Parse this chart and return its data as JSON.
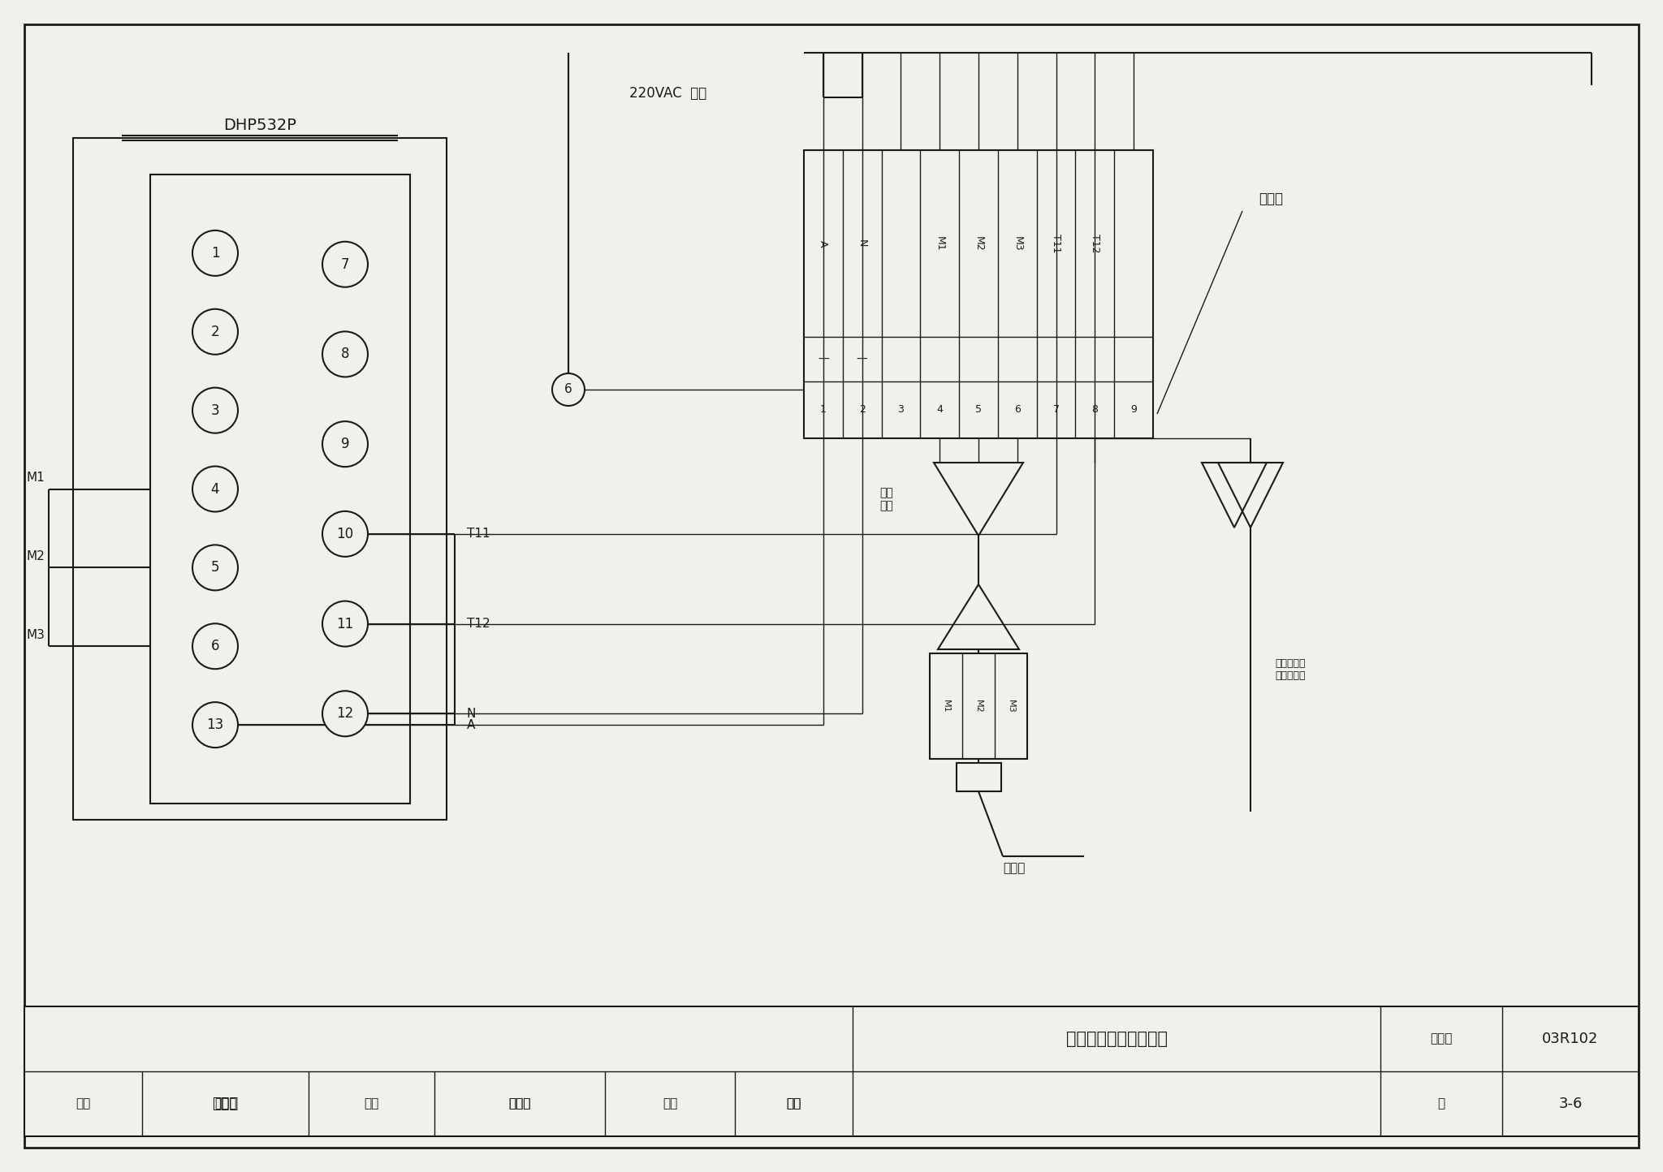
{
  "bg_color": "#f2f0eb",
  "line_color": "#1a1a1a",
  "title_text": "温度调节议单元连接图",
  "atlas_label": "图集号",
  "atlas_no": "03R102",
  "page_label": "页",
  "page_no": "3-6",
  "dhp_label": "DHP532P",
  "power_label": "220VAC  电源",
  "terminal_label": "端子排",
  "upper_label1": "盒上",
  "upper_label2": "截堵",
  "lower_label": "热电阻",
  "right_vert_label": "温度调节议单元连接图",
  "audit_row1": [
    "审核",
    "魏新全",
    "校对",
    "谭晓杰",
    "设计",
    "董蔷"
  ],
  "audit_row2": [
    "",
    "魏新全",
    "",
    "谭晓杰",
    "",
    "董蔷"
  ],
  "term_labels": [
    "A",
    "N",
    "",
    "M1",
    "M2",
    "M3",
    "T11",
    "T12",
    ""
  ],
  "term_nums": [
    "1",
    "2",
    "3",
    "4",
    "5",
    "6",
    "7",
    "8",
    "9"
  ],
  "node_label": "6"
}
